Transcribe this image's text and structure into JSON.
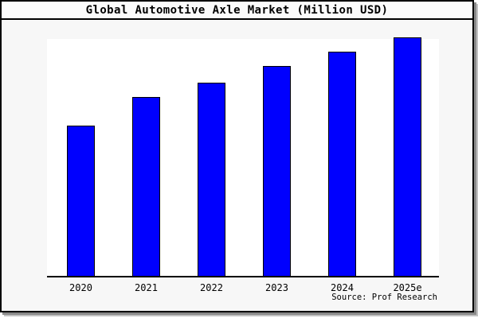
{
  "window": {
    "title": "Global Automotive Axle Market (Million USD)",
    "source_note": "Source: Prof Research"
  },
  "chart_data": {
    "type": "bar",
    "title": "Global Automotive Axle Market (Million USD)",
    "categories": [
      "2020",
      "2021",
      "2022",
      "2023",
      "2024",
      "2025e"
    ],
    "values": [
      63,
      75,
      81,
      88,
      94,
      100
    ],
    "values_note": "relative estimates from bar heights; no y-axis scale, ticks or data labels are shown in the image",
    "xlabel": "",
    "ylabel": "",
    "ylim": [
      0,
      100
    ],
    "grid": false,
    "legend": false,
    "source_annotation": "Source: Prof Research"
  },
  "colors": {
    "bar_fill": "#0000fe",
    "bar_stroke": "#000000",
    "canvas_bg": "#f7f7f7",
    "titlebar_bg": "#fbfbfb",
    "plot_bg": "#ffffff",
    "axis": "#000000",
    "text": "#000000",
    "shadow_dark": "#8a8a8a",
    "shadow_light": "#c2c2c2"
  }
}
